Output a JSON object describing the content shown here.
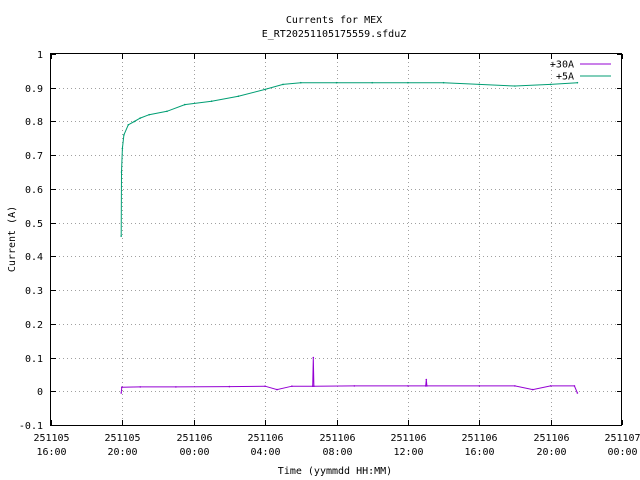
{
  "chart_data": {
    "type": "line",
    "title": "Currents for MEX",
    "subtitle": "E_RT20251105175559.sfduZ",
    "xlabel": "Time (yymmdd HH:MM)",
    "ylabel": "Current (A)",
    "ylim": [
      -0.1,
      1.0
    ],
    "xlim": [
      "2025-11-05 16:00",
      "2025-11-07 00:00"
    ],
    "yticks": [
      "-0.1",
      "0",
      "0.1",
      "0.2",
      "0.3",
      "0.4",
      "0.5",
      "0.6",
      "0.7",
      "0.8",
      "0.9",
      "1"
    ],
    "xticks": [
      {
        "date": "251105",
        "time": "16:00"
      },
      {
        "date": "251105",
        "time": "20:00"
      },
      {
        "date": "251106",
        "time": "00:00"
      },
      {
        "date": "251106",
        "time": "04:00"
      },
      {
        "date": "251106",
        "time": "08:00"
      },
      {
        "date": "251106",
        "time": "12:00"
      },
      {
        "date": "251106",
        "time": "16:00"
      },
      {
        "date": "251106",
        "time": "20:00"
      },
      {
        "date": "251107",
        "time": "00:00"
      }
    ],
    "grid": true,
    "legend_position": "top-right",
    "series": [
      {
        "name": "+30A",
        "color": "#9400d3",
        "x": [
          "2025-11-05 19:56",
          "2025-11-05 19:58",
          "2025-11-05 21:00",
          "2025-11-05 23:00",
          "2025-11-06 02:00",
          "2025-11-06 04:00",
          "2025-11-06 04:40",
          "2025-11-06 05:30",
          "2025-11-06 06:40",
          "2025-11-06 06:42",
          "2025-11-06 06:44",
          "2025-11-06 09:00",
          "2025-11-06 12:00",
          "2025-11-06 13:00",
          "2025-11-06 13:02",
          "2025-11-06 13:04",
          "2025-11-06 16:00",
          "2025-11-06 18:00",
          "2025-11-06 19:00",
          "2025-11-06 20:00",
          "2025-11-06 21:20",
          "2025-11-06 21:30"
        ],
        "y": [
          -0.005,
          0.012,
          0.013,
          0.013,
          0.014,
          0.015,
          0.005,
          0.015,
          0.015,
          0.1,
          0.015,
          0.016,
          0.016,
          0.016,
          0.035,
          0.016,
          0.016,
          0.016,
          0.005,
          0.016,
          0.016,
          -0.005
        ]
      },
      {
        "name": "+5A",
        "color": "#009e73",
        "x": [
          "2025-11-05 19:56",
          "2025-11-05 19:57",
          "2025-11-05 20:00",
          "2025-11-05 20:05",
          "2025-11-05 20:20",
          "2025-11-05 20:40",
          "2025-11-05 21:00",
          "2025-11-05 21:30",
          "2025-11-05 22:30",
          "2025-11-05 23:30",
          "2025-11-06 01:00",
          "2025-11-06 02:30",
          "2025-11-06 04:00",
          "2025-11-06 05:00",
          "2025-11-06 06:00",
          "2025-11-06 08:00",
          "2025-11-06 10:00",
          "2025-11-06 12:00",
          "2025-11-06 14:00",
          "2025-11-06 16:00",
          "2025-11-06 18:00",
          "2025-11-06 20:00",
          "2025-11-06 21:30"
        ],
        "y": [
          0.46,
          0.65,
          0.72,
          0.76,
          0.79,
          0.8,
          0.81,
          0.82,
          0.83,
          0.85,
          0.86,
          0.875,
          0.895,
          0.91,
          0.915,
          0.915,
          0.915,
          0.915,
          0.915,
          0.91,
          0.905,
          0.91,
          0.915
        ]
      }
    ]
  }
}
